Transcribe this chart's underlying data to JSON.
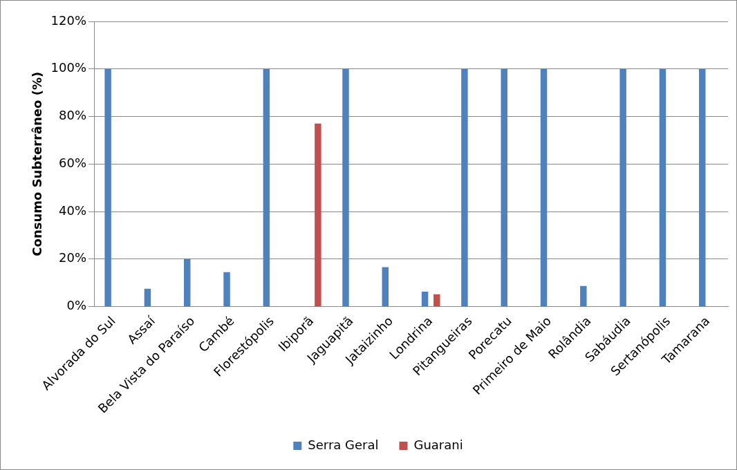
{
  "chart_data": {
    "type": "bar",
    "ylabel": "Consumo Subterrâneo (%)",
    "categories": [
      "Alvorada do Sul",
      "Assaí",
      "Bela Vista do Paraíso",
      "Cambé",
      "Florestópolis",
      "Ibiporã",
      "Jaguapitã",
      "Jataizinho",
      "Londrina",
      "Pitangueiras",
      "Porecatu",
      "Primeiro de Maio",
      "Rolândia",
      "Sabáudia",
      "Sertanópolis",
      "Tamarana"
    ],
    "series": [
      {
        "name": "Serra Geral",
        "color": "#4f81bd",
        "values": [
          100,
          7.5,
          20,
          14.5,
          100,
          0,
          100,
          16.6,
          6.3,
          100,
          100,
          100,
          8.7,
          100,
          100,
          100
        ]
      },
      {
        "name": "Guarani",
        "color": "#c0504d",
        "values": [
          0,
          0,
          0,
          0,
          0,
          77,
          0,
          0,
          5.2,
          0,
          0,
          0,
          0,
          0,
          0,
          0
        ]
      }
    ],
    "ylim": [
      0,
      120
    ],
    "yticks": [
      {
        "value": 0,
        "label": "0%"
      },
      {
        "value": 20,
        "label": "20%"
      },
      {
        "value": 40,
        "label": "40%"
      },
      {
        "value": 60,
        "label": "60%"
      },
      {
        "value": 80,
        "label": "80%"
      },
      {
        "value": 100,
        "label": "100%"
      },
      {
        "value": 120,
        "label": "120%"
      }
    ],
    "grid": "y",
    "legend": "bottom"
  }
}
